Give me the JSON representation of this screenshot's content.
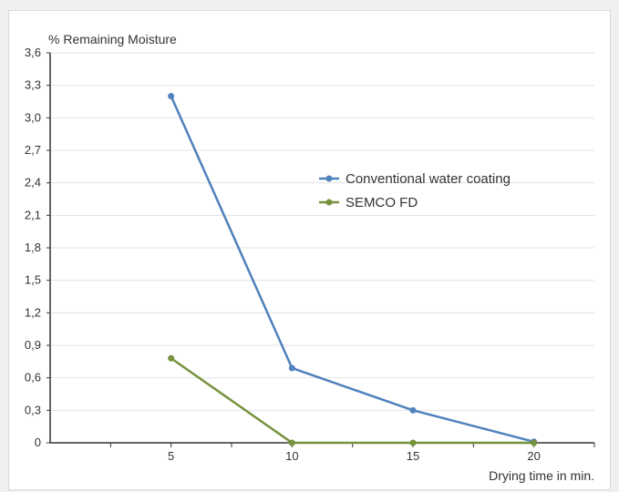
{
  "chart_data": {
    "type": "line",
    "title": "",
    "ylabel": "% Remaining Moisture",
    "xlabel": "Drying time in min.",
    "x": [
      5,
      10,
      15,
      20
    ],
    "xlim": [
      0,
      22.5
    ],
    "ylim": [
      0,
      3.6
    ],
    "x_ticks": [
      "5",
      "10",
      "15",
      "20"
    ],
    "y_ticks": [
      "0",
      "0,3",
      "0,6",
      "0,9",
      "1,2",
      "1,5",
      "1,8",
      "2,1",
      "2,4",
      "2,7",
      "3,0",
      "3,3",
      "3,6"
    ],
    "grid": "horizontal",
    "legend_position": "center-right",
    "series": [
      {
        "name": "Conventional water coating",
        "color": "#4f81bd",
        "values": [
          3.2,
          0.69,
          0.3,
          0.01
        ]
      },
      {
        "name": "SEMCO FD",
        "color": "#76923c",
        "values": [
          0.78,
          0.0,
          0.0,
          0.0
        ]
      }
    ]
  }
}
